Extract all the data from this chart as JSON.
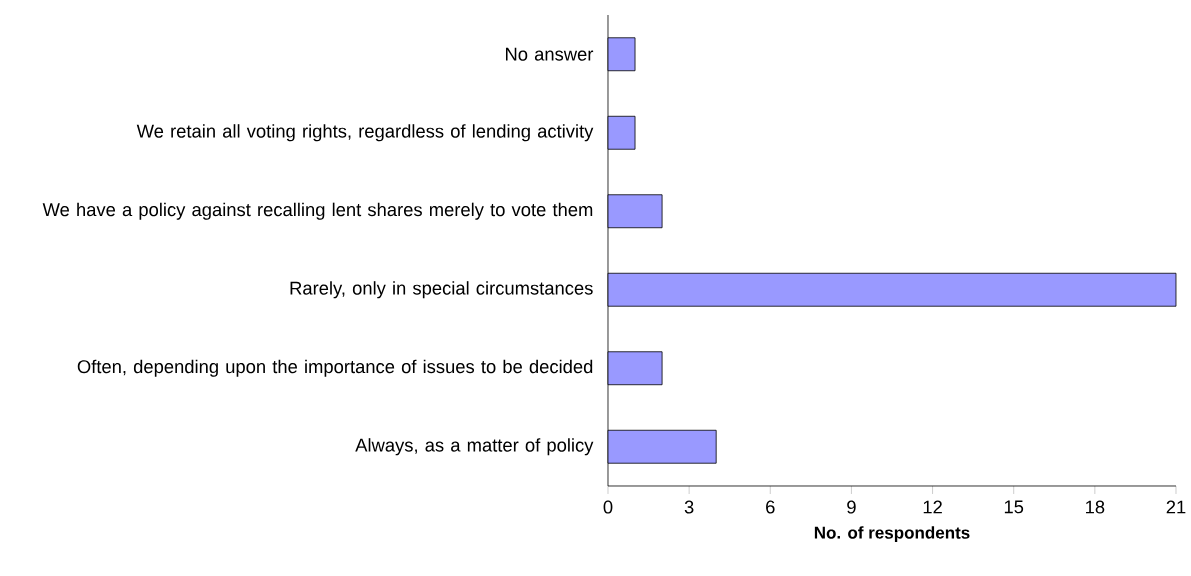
{
  "chart_data": {
    "type": "bar",
    "orientation": "horizontal",
    "xlabel": "No. of respondents",
    "categories": [
      "No answer",
      "We retain all voting rights, regardless of lending activity",
      "We have a policy against recalling lent shares merely to vote them",
      "Rarely, only in special circumstances",
      "Often, depending upon the importance of issues to be decided",
      "Always, as a matter of policy"
    ],
    "values": [
      1,
      1,
      2,
      21,
      2,
      4
    ],
    "color": "#9999ff",
    "xlim": [
      0,
      21
    ],
    "xticks": [
      0,
      3,
      6,
      9,
      12,
      15,
      18,
      21
    ]
  }
}
